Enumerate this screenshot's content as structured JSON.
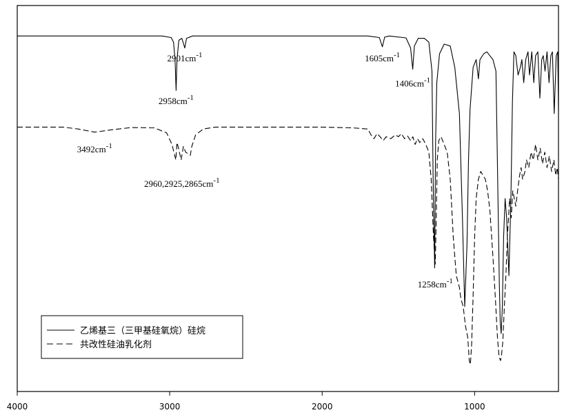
{
  "chart_data": {
    "type": "line",
    "title": "",
    "xlabel": "",
    "ylabel": "",
    "xlim": [
      4000,
      450
    ],
    "x_reversed": true,
    "ylim": [
      0,
      1
    ],
    "grid": false,
    "legend_placement": "bottom-left",
    "xticks": [
      {
        "value": 4000,
        "label": "4000"
      },
      {
        "value": 3000,
        "label": "3000"
      },
      {
        "value": 2000,
        "label": "2000"
      },
      {
        "value": 1000,
        "label": "1000"
      }
    ],
    "series": [
      {
        "name": "乙烯基三（三甲基硅氧烷）硅烷",
        "style": "solid",
        "points": [
          [
            4000,
            0.921
          ],
          [
            3050,
            0.921
          ],
          [
            2990,
            0.917
          ],
          [
            2975,
            0.905
          ],
          [
            2965,
            0.86
          ],
          [
            2958,
            0.78
          ],
          [
            2952,
            0.86
          ],
          [
            2940,
            0.91
          ],
          [
            2920,
            0.915
          ],
          [
            2901,
            0.89
          ],
          [
            2890,
            0.915
          ],
          [
            2850,
            0.921
          ],
          [
            1700,
            0.921
          ],
          [
            1625,
            0.917
          ],
          [
            1605,
            0.893
          ],
          [
            1590,
            0.918
          ],
          [
            1560,
            0.921
          ],
          [
            1450,
            0.916
          ],
          [
            1420,
            0.89
          ],
          [
            1406,
            0.835
          ],
          [
            1395,
            0.895
          ],
          [
            1370,
            0.915
          ],
          [
            1330,
            0.915
          ],
          [
            1300,
            0.905
          ],
          [
            1280,
            0.83
          ],
          [
            1272,
            0.55
          ],
          [
            1262,
            0.32
          ],
          [
            1256,
            0.65
          ],
          [
            1248,
            0.8
          ],
          [
            1230,
            0.875
          ],
          [
            1200,
            0.9
          ],
          [
            1160,
            0.895
          ],
          [
            1130,
            0.84
          ],
          [
            1100,
            0.72
          ],
          [
            1080,
            0.45
          ],
          [
            1065,
            0.22
          ],
          [
            1050,
            0.38
          ],
          [
            1040,
            0.6
          ],
          [
            1030,
            0.73
          ],
          [
            1010,
            0.84
          ],
          [
            990,
            0.86
          ],
          [
            975,
            0.81
          ],
          [
            965,
            0.86
          ],
          [
            940,
            0.875
          ],
          [
            920,
            0.88
          ],
          [
            900,
            0.87
          ],
          [
            880,
            0.86
          ],
          [
            860,
            0.83
          ],
          [
            845,
            0.45
          ],
          [
            838,
            0.28
          ],
          [
            832,
            0.18
          ],
          [
            826,
            0.15
          ],
          [
            818,
            0.22
          ],
          [
            810,
            0.4
          ],
          [
            800,
            0.5
          ],
          [
            790,
            0.45
          ],
          [
            775,
            0.3
          ],
          [
            762,
            0.5
          ],
          [
            752,
            0.75
          ],
          [
            742,
            0.88
          ],
          [
            730,
            0.87
          ],
          [
            715,
            0.82
          ],
          [
            700,
            0.84
          ],
          [
            690,
            0.86
          ],
          [
            678,
            0.8
          ],
          [
            665,
            0.86
          ],
          [
            650,
            0.88
          ],
          [
            640,
            0.82
          ],
          [
            625,
            0.88
          ],
          [
            612,
            0.8
          ],
          [
            600,
            0.87
          ],
          [
            585,
            0.88
          ],
          [
            572,
            0.76
          ],
          [
            560,
            0.86
          ],
          [
            550,
            0.87
          ],
          [
            538,
            0.83
          ],
          [
            525,
            0.88
          ],
          [
            512,
            0.8
          ],
          [
            500,
            0.87
          ],
          [
            490,
            0.88
          ],
          [
            478,
            0.72
          ],
          [
            465,
            0.87
          ],
          [
            455,
            0.88
          ],
          [
            450,
            0.73
          ]
        ]
      },
      {
        "name": "共改性硅油乳化剂",
        "style": "dashed",
        "points": [
          [
            4000,
            0.685
          ],
          [
            3700,
            0.685
          ],
          [
            3600,
            0.68
          ],
          [
            3492,
            0.672
          ],
          [
            3380,
            0.678
          ],
          [
            3250,
            0.684
          ],
          [
            3100,
            0.683
          ],
          [
            3020,
            0.67
          ],
          [
            2985,
            0.64
          ],
          [
            2960,
            0.6
          ],
          [
            2952,
            0.645
          ],
          [
            2942,
            0.63
          ],
          [
            2925,
            0.6
          ],
          [
            2910,
            0.635
          ],
          [
            2895,
            0.62
          ],
          [
            2865,
            0.612
          ],
          [
            2855,
            0.635
          ],
          [
            2830,
            0.665
          ],
          [
            2780,
            0.68
          ],
          [
            2700,
            0.685
          ],
          [
            2000,
            0.685
          ],
          [
            1800,
            0.683
          ],
          [
            1700,
            0.68
          ],
          [
            1680,
            0.665
          ],
          [
            1660,
            0.655
          ],
          [
            1640,
            0.668
          ],
          [
            1620,
            0.66
          ],
          [
            1600,
            0.65
          ],
          [
            1580,
            0.66
          ],
          [
            1550,
            0.655
          ],
          [
            1520,
            0.665
          ],
          [
            1500,
            0.66
          ],
          [
            1480,
            0.668
          ],
          [
            1460,
            0.655
          ],
          [
            1440,
            0.662
          ],
          [
            1420,
            0.65
          ],
          [
            1405,
            0.66
          ],
          [
            1390,
            0.64
          ],
          [
            1375,
            0.655
          ],
          [
            1360,
            0.645
          ],
          [
            1340,
            0.655
          ],
          [
            1320,
            0.64
          ],
          [
            1300,
            0.62
          ],
          [
            1285,
            0.55
          ],
          [
            1270,
            0.4
          ],
          [
            1258,
            0.33
          ],
          [
            1252,
            0.45
          ],
          [
            1245,
            0.6
          ],
          [
            1235,
            0.65
          ],
          [
            1220,
            0.66
          ],
          [
            1200,
            0.64
          ],
          [
            1180,
            0.62
          ],
          [
            1160,
            0.55
          ],
          [
            1140,
            0.4
          ],
          [
            1120,
            0.3
          ],
          [
            1100,
            0.27
          ],
          [
            1090,
            0.24
          ],
          [
            1075,
            0.22
          ],
          [
            1060,
            0.17
          ],
          [
            1045,
            0.14
          ],
          [
            1035,
            0.08
          ],
          [
            1028,
            0.07
          ],
          [
            1020,
            0.12
          ],
          [
            1010,
            0.25
          ],
          [
            1000,
            0.4
          ],
          [
            990,
            0.5
          ],
          [
            975,
            0.55
          ],
          [
            960,
            0.57
          ],
          [
            945,
            0.56
          ],
          [
            930,
            0.55
          ],
          [
            915,
            0.52
          ],
          [
            900,
            0.47
          ],
          [
            880,
            0.35
          ],
          [
            865,
            0.25
          ],
          [
            850,
            0.14
          ],
          [
            840,
            0.09
          ],
          [
            830,
            0.08
          ],
          [
            822,
            0.1
          ],
          [
            815,
            0.13
          ],
          [
            805,
            0.22
          ],
          [
            795,
            0.3
          ],
          [
            785,
            0.4
          ],
          [
            770,
            0.5
          ],
          [
            760,
            0.45
          ],
          [
            750,
            0.52
          ],
          [
            740,
            0.5
          ],
          [
            730,
            0.48
          ],
          [
            718,
            0.52
          ],
          [
            705,
            0.56
          ],
          [
            695,
            0.58
          ],
          [
            685,
            0.55
          ],
          [
            670,
            0.57
          ],
          [
            660,
            0.6
          ],
          [
            645,
            0.58
          ],
          [
            630,
            0.62
          ],
          [
            615,
            0.6
          ],
          [
            600,
            0.64
          ],
          [
            585,
            0.6
          ],
          [
            570,
            0.63
          ],
          [
            555,
            0.59
          ],
          [
            540,
            0.62
          ],
          [
            525,
            0.58
          ],
          [
            510,
            0.61
          ],
          [
            495,
            0.57
          ],
          [
            480,
            0.6
          ],
          [
            468,
            0.56
          ],
          [
            458,
            0.58
          ],
          [
            450,
            0.55
          ]
        ]
      }
    ],
    "annotations": [
      {
        "text": "2901cm",
        "sup": "-1",
        "x": 2901,
        "y": 0.855
      },
      {
        "text": "2958cm",
        "sup": "-1",
        "x": 2958,
        "y": 0.745
      },
      {
        "text": "1605cm",
        "sup": "-1",
        "x": 1605,
        "y": 0.855
      },
      {
        "text": "1406cm",
        "sup": "-1",
        "x": 1406,
        "y": 0.79
      },
      {
        "text": "3492cm",
        "sup": "-1",
        "x": 3492,
        "y": 0.62
      },
      {
        "text": "2960,2925,2865cm",
        "sup": "-1",
        "x": 2920,
        "y": 0.53
      },
      {
        "text": "1258cm",
        "sup": "-1",
        "x": 1258,
        "y": 0.27
      }
    ]
  }
}
